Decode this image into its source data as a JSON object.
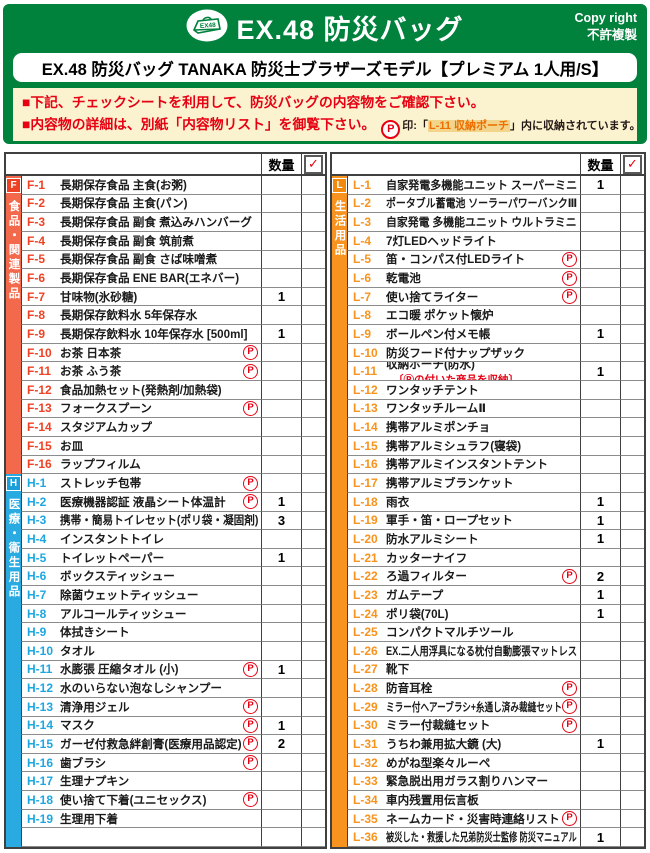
{
  "colors": {
    "green": "#00813c",
    "notice_bg": "#fbf3d0",
    "red": "#e60012"
  },
  "header": {
    "logo": "EX48",
    "title": "EX.48 防災バッグ",
    "copyright_line1": "Copy right",
    "copyright_line2": "不許複製",
    "subtitle": "EX.48 防災バッグ TANAKA 防災士ブラザーズモデル【プレミアム 1人用/S】"
  },
  "notice": {
    "line1": "■下記、チェックシートを利用して、防災バッグの内容物をご確認下さい。",
    "line2": "■内容物の詳細は、別紙「内容物リスト」を御覧下さい。",
    "p_letter": "P",
    "p_note_prefix": "印:「",
    "p_note_highlight": "L-11 収納ポーチ",
    "p_note_suffix": "」内に収納されています。"
  },
  "table": {
    "qty_header": "数量",
    "check_glyph": "✓",
    "p_letter": "P"
  },
  "sections": {
    "F": {
      "letter": "F",
      "label": "食品・関連製品",
      "strip": "#f3694c",
      "badge": "#ee4023",
      "code": "#ef4123"
    },
    "H": {
      "letter": "H",
      "label": "医療・衛生用品",
      "strip": "#29abe2",
      "badge": "#1b9fdb",
      "code": "#1da7e0"
    },
    "L": {
      "letter": "L",
      "label": "生活用品",
      "strip": "#f7931e",
      "badge": "#f28a0e",
      "code": "#f7931e"
    }
  },
  "left_items": [
    {
      "section": "F",
      "code": "F-1",
      "name": "長期保存食品 主食(お粥)",
      "p": false,
      "qty": ""
    },
    {
      "section": "F",
      "code": "F-2",
      "name": "長期保存食品 主食(パン)",
      "p": false,
      "qty": ""
    },
    {
      "section": "F",
      "code": "F-3",
      "name": "長期保存食品 副食 煮込みハンバーグ",
      "p": false,
      "qty": ""
    },
    {
      "section": "F",
      "code": "F-4",
      "name": "長期保存食品 副食 筑前煮",
      "p": false,
      "qty": ""
    },
    {
      "section": "F",
      "code": "F-5",
      "name": "長期保存食品 副食 さば味噌煮",
      "p": false,
      "qty": ""
    },
    {
      "section": "F",
      "code": "F-6",
      "name": "長期保存食品 ENE BAR(エネバー)",
      "p": false,
      "qty": ""
    },
    {
      "section": "F",
      "code": "F-7",
      "name": "甘味物(氷砂糖)",
      "p": false,
      "qty": "1"
    },
    {
      "section": "F",
      "code": "F-8",
      "name": "長期保存飲料水 5年保存水",
      "p": false,
      "qty": ""
    },
    {
      "section": "F",
      "code": "F-9",
      "name": "長期保存飲料水 10年保存水 [500ml]",
      "p": false,
      "qty": "1"
    },
    {
      "section": "F",
      "code": "F-10",
      "name": "お茶 日本茶",
      "p": true,
      "qty": ""
    },
    {
      "section": "F",
      "code": "F-11",
      "name": "お茶 ふう茶",
      "p": true,
      "qty": ""
    },
    {
      "section": "F",
      "code": "F-12",
      "name": "食品加熱セット(発熱剤/加熱袋)",
      "p": false,
      "qty": ""
    },
    {
      "section": "F",
      "code": "F-13",
      "name": "フォークスプーン",
      "p": true,
      "qty": ""
    },
    {
      "section": "F",
      "code": "F-14",
      "name": "スタジアムカップ",
      "p": false,
      "qty": ""
    },
    {
      "section": "F",
      "code": "F-15",
      "name": "お皿",
      "p": false,
      "qty": ""
    },
    {
      "section": "F",
      "code": "F-16",
      "name": "ラップフィルム",
      "p": false,
      "qty": ""
    },
    {
      "section": "H",
      "code": "H-1",
      "name": "ストレッチ包帯",
      "p": true,
      "qty": ""
    },
    {
      "section": "H",
      "code": "H-2",
      "name": "医療機器認証 液晶シート体温計",
      "p": true,
      "qty": "1"
    },
    {
      "section": "H",
      "code": "H-3",
      "name": "携帯・簡易トイレセット(ポリ袋・凝固剤)",
      "p": false,
      "qty": "3"
    },
    {
      "section": "H",
      "code": "H-4",
      "name": "インスタントトイレ",
      "p": false,
      "qty": ""
    },
    {
      "section": "H",
      "code": "H-5",
      "name": "トイレットペーパー",
      "p": false,
      "qty": "1"
    },
    {
      "section": "H",
      "code": "H-6",
      "name": "ボックスティッシュー",
      "p": false,
      "qty": ""
    },
    {
      "section": "H",
      "code": "H-7",
      "name": "除菌ウェットティッシュー",
      "p": false,
      "qty": ""
    },
    {
      "section": "H",
      "code": "H-8",
      "name": "アルコールティッシュー",
      "p": false,
      "qty": ""
    },
    {
      "section": "H",
      "code": "H-9",
      "name": "体拭きシート",
      "p": false,
      "qty": ""
    },
    {
      "section": "H",
      "code": "H-10",
      "name": "タオル",
      "p": false,
      "qty": ""
    },
    {
      "section": "H",
      "code": "H-11",
      "name": "水膨張 圧縮タオル (小)",
      "p": true,
      "qty": "1"
    },
    {
      "section": "H",
      "code": "H-12",
      "name": "水のいらない泡なしシャンプー",
      "p": false,
      "qty": ""
    },
    {
      "section": "H",
      "code": "H-13",
      "name": "清浄用ジェル",
      "p": true,
      "qty": ""
    },
    {
      "section": "H",
      "code": "H-14",
      "name": "マスク",
      "p": true,
      "qty": "1"
    },
    {
      "section": "H",
      "code": "H-15",
      "name": "ガーゼ付救急絆創膏(医療用品認定)",
      "p": true,
      "qty": "2"
    },
    {
      "section": "H",
      "code": "H-16",
      "name": "歯ブラシ",
      "p": true,
      "qty": ""
    },
    {
      "section": "H",
      "code": "H-17",
      "name": "生理ナプキン",
      "p": false,
      "qty": ""
    },
    {
      "section": "H",
      "code": "H-18",
      "name": "使い捨て下着(ユニセックス)",
      "p": true,
      "qty": ""
    },
    {
      "section": "H",
      "code": "H-19",
      "name": "生理用下着",
      "p": false,
      "qty": ""
    },
    {
      "section": "H",
      "code": "",
      "name": "",
      "p": false,
      "qty": ""
    }
  ],
  "right_items": [
    {
      "section": "L",
      "code": "L-1",
      "name": "自家発電多機能ユニット スーパーミニ",
      "p": false,
      "qty": "1"
    },
    {
      "section": "L",
      "code": "L-2",
      "name": "ポータブル蓄電池 ソーラーパワーバンクⅢ",
      "p": false,
      "qty": ""
    },
    {
      "section": "L",
      "code": "L-3",
      "name": "自家発電 多機能ユニット ウルトラミニ",
      "p": false,
      "qty": ""
    },
    {
      "section": "L",
      "code": "L-4",
      "name": "7灯LEDヘッドライト",
      "p": false,
      "qty": ""
    },
    {
      "section": "L",
      "code": "L-5",
      "name": "笛・コンパス付LEDライト",
      "p": true,
      "qty": ""
    },
    {
      "section": "L",
      "code": "L-6",
      "name": "乾電池",
      "p": true,
      "qty": ""
    },
    {
      "section": "L",
      "code": "L-7",
      "name": "使い捨てライター",
      "p": true,
      "qty": ""
    },
    {
      "section": "L",
      "code": "L-8",
      "name": "エコ暖 ポケット懐炉",
      "p": false,
      "qty": ""
    },
    {
      "section": "L",
      "code": "L-9",
      "name": "ボールペン付メモ帳",
      "p": false,
      "qty": "1"
    },
    {
      "section": "L",
      "code": "L-10",
      "name": "防災フード付ナップザック",
      "p": false,
      "qty": ""
    },
    {
      "section": "L",
      "code": "L-11",
      "name": "収納ポーチ(防水)",
      "p": false,
      "qty": "1",
      "note": "〔Ⓟの付いた商品を収納〕"
    },
    {
      "section": "L",
      "code": "L-12",
      "name": "ワンタッチテント",
      "p": false,
      "qty": ""
    },
    {
      "section": "L",
      "code": "L-13",
      "name": "ワンタッチルームⅡ",
      "p": false,
      "qty": ""
    },
    {
      "section": "L",
      "code": "L-14",
      "name": "携帯アルミポンチョ",
      "p": false,
      "qty": ""
    },
    {
      "section": "L",
      "code": "L-15",
      "name": "携帯アルミシュラフ(寝袋)",
      "p": false,
      "qty": ""
    },
    {
      "section": "L",
      "code": "L-16",
      "name": "携帯アルミインスタントテント",
      "p": false,
      "qty": ""
    },
    {
      "section": "L",
      "code": "L-17",
      "name": "携帯アルミブランケット",
      "p": false,
      "qty": ""
    },
    {
      "section": "L",
      "code": "L-18",
      "name": "雨衣",
      "p": false,
      "qty": "1"
    },
    {
      "section": "L",
      "code": "L-19",
      "name": "軍手・笛・ロープセット",
      "p": false,
      "qty": "1"
    },
    {
      "section": "L",
      "code": "L-20",
      "name": "防水アルミシート",
      "p": false,
      "qty": "1"
    },
    {
      "section": "L",
      "code": "L-21",
      "name": "カッターナイフ",
      "p": false,
      "qty": ""
    },
    {
      "section": "L",
      "code": "L-22",
      "name": "ろ過フィルター",
      "p": true,
      "qty": "2"
    },
    {
      "section": "L",
      "code": "L-23",
      "name": "ガムテープ",
      "p": false,
      "qty": "1"
    },
    {
      "section": "L",
      "code": "L-24",
      "name": "ポリ袋(70L)",
      "p": false,
      "qty": "1"
    },
    {
      "section": "L",
      "code": "L-25",
      "name": "コンパクトマルチツール",
      "p": false,
      "qty": ""
    },
    {
      "section": "L",
      "code": "L-26",
      "name": "EX.二人用浮具になる枕付自動膨張マットレス",
      "p": false,
      "qty": ""
    },
    {
      "section": "L",
      "code": "L-27",
      "name": "靴下",
      "p": false,
      "qty": ""
    },
    {
      "section": "L",
      "code": "L-28",
      "name": "防音耳栓",
      "p": true,
      "qty": ""
    },
    {
      "section": "L",
      "code": "L-29",
      "name": "ミラー付ヘアーブラシ+糸通し済み裁縫セット",
      "p": true,
      "qty": ""
    },
    {
      "section": "L",
      "code": "L-30",
      "name": "ミラー付裁縫セット",
      "p": true,
      "qty": ""
    },
    {
      "section": "L",
      "code": "L-31",
      "name": "うちわ兼用拡大鏡 (大)",
      "p": false,
      "qty": "1"
    },
    {
      "section": "L",
      "code": "L-32",
      "name": "めがね型楽々ルーペ",
      "p": false,
      "qty": ""
    },
    {
      "section": "L",
      "code": "L-33",
      "name": "緊急脱出用ガラス割りハンマー",
      "p": false,
      "qty": ""
    },
    {
      "section": "L",
      "code": "L-34",
      "name": "車内残置用伝言板",
      "p": false,
      "qty": ""
    },
    {
      "section": "L",
      "code": "L-35",
      "name": "ネームカード・災害時連絡リスト",
      "p": true,
      "qty": ""
    },
    {
      "section": "L",
      "code": "L-36",
      "name": "被災した・救援した兄弟防災士監修 防災マニュアル",
      "p": false,
      "qty": "1"
    }
  ]
}
